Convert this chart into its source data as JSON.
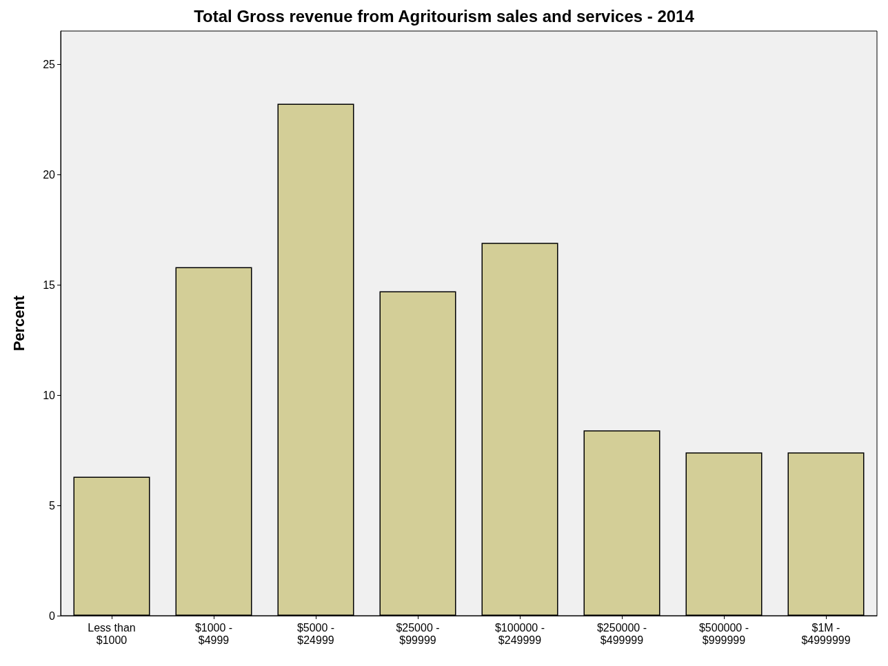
{
  "chart_data": {
    "type": "bar",
    "title": "Total Gross revenue from Agritourism sales and services - 2014",
    "ylabel": "Percent",
    "categories": [
      "Less than\n$1000",
      "$1000 -\n$4999",
      "$5000 -\n$24999",
      "$25000 -\n$99999",
      "$100000 -\n$249999",
      "$250000 -\n$499999",
      "$500000 -\n$999999",
      "$1M -\n$4999999"
    ],
    "values": [
      6.3,
      15.8,
      23.2,
      14.7,
      16.9,
      8.4,
      7.4,
      7.4
    ],
    "color": "#d3ce97",
    "ylim": [
      0,
      26.5
    ],
    "yticks": [
      0,
      5,
      10,
      15,
      20,
      25
    ],
    "grid": false
  }
}
